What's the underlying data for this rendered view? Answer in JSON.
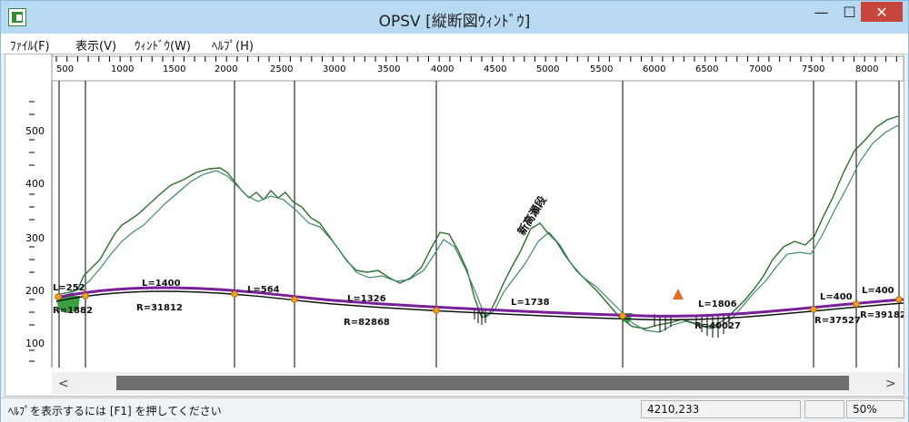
{
  "window": {
    "title": "OPSV [縦断図ｳｨﾝﾄﾞｳ]",
    "min_glyph": "—",
    "max_glyph": "☐",
    "close_glyph": "✕"
  },
  "menu": {
    "file": "ﾌｧｲﾙ(F)",
    "view": "表示(V)",
    "window": "ｳｨﾝﾄﾞｳ(W)",
    "help": "ﾍﾙﾌﾟ(H)"
  },
  "ruler": {
    "labels": [
      "500",
      "1000",
      "1500",
      "2000",
      "2500",
      "3000",
      "3500",
      "4000",
      "4500",
      "5000",
      "5500",
      "6000",
      "6500",
      "7000",
      "7500",
      "8000"
    ]
  },
  "yaxis": {
    "labels": [
      "500",
      "400",
      "300",
      "200",
      "100"
    ]
  },
  "curve_labels": {
    "l252": "L=252",
    "r1882": "R=1882",
    "l1400": "L=1400",
    "r31812": "R=31812",
    "l564": "L=564",
    "l1326": "L=1326",
    "r82868": "R=82868",
    "l1738": "L=1738",
    "l1806": "L=1806",
    "r40027": "R=40027",
    "l400a": "L=400",
    "r37527": "R=37527",
    "l400b": "L=400",
    "r39182": "R=39182"
  },
  "annotation": "新高瀬段",
  "scroll": {
    "left_glyph": "<",
    "right_glyph": ">"
  },
  "status": {
    "message": "ﾍﾙﾌﾟを表示するには [F1] を押してください",
    "coords": "4210,233",
    "zoom": "50%"
  }
}
